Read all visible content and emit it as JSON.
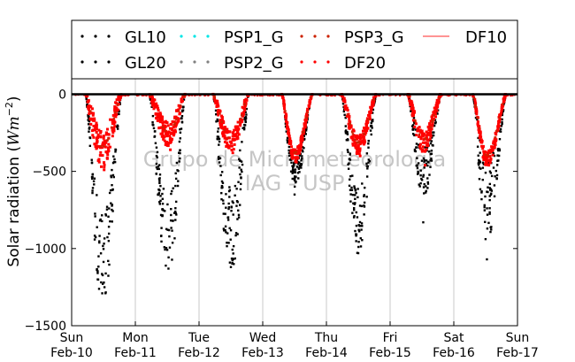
{
  "chart_data": {
    "type": "scatter",
    "ylabel": "Solar radiation (Wm^-2)",
    "ylim": [
      -1500,
      100
    ],
    "xlim": [
      0,
      7
    ],
    "yticks": [
      0,
      -500,
      -1000,
      -1500
    ],
    "ytick_labels": [
      "0",
      "−500",
      "−1000",
      "−1500"
    ],
    "xtick_labels": [
      [
        "Sun",
        "Feb-10"
      ],
      [
        "Mon",
        "Feb-11"
      ],
      [
        "Tue",
        "Feb-12"
      ],
      [
        "Wed",
        "Feb-13"
      ],
      [
        "Thu",
        "Feb-14"
      ],
      [
        "Fri",
        "Feb-15"
      ],
      [
        "Sat",
        "Feb-16"
      ],
      [
        "Sun",
        "Feb-17"
      ]
    ],
    "grid": "vertical",
    "legend_position": "top",
    "watermark": [
      "Grupo de Micrometeorologia",
      "IAG - USP"
    ],
    "series": [
      {
        "name": "GL10",
        "color": "#000000",
        "marker": "dot"
      },
      {
        "name": "PSP1_G",
        "color": "#00e5e5",
        "marker": "dot"
      },
      {
        "name": "PSP3_G",
        "color": "#cc2200",
        "marker": "dot"
      },
      {
        "name": "DF10",
        "color": "#ff7070",
        "marker": "line"
      },
      {
        "name": "GL20",
        "color": "#000000",
        "marker": "dot"
      },
      {
        "name": "PSP2_G",
        "color": "#808080",
        "marker": "dot"
      },
      {
        "name": "DF20",
        "color": "#ff0000",
        "marker": "dot"
      }
    ],
    "daily_minima": {
      "days": [
        "Feb-10",
        "Feb-11",
        "Feb-12",
        "Feb-13",
        "Feb-14",
        "Feb-15",
        "Feb-16"
      ],
      "GL": [
        -1290,
        -1130,
        -1120,
        -650,
        -1030,
        -830,
        -1070
      ],
      "DF20": [
        -490,
        -360,
        -380,
        -440,
        -400,
        -460,
        -460
      ]
    },
    "daily_profiles": [
      {
        "day": "Feb-10",
        "start": 0.22,
        "end": 0.78,
        "peak": 0.48,
        "gl": -1100,
        "df": -360,
        "gl_noise": 320,
        "df_noise": 120,
        "seed": 11
      },
      {
        "day": "Feb-11",
        "start": 0.22,
        "end": 0.78,
        "peak": 0.52,
        "gl": -950,
        "df": -260,
        "gl_noise": 300,
        "df_noise": 80,
        "seed": 23
      },
      {
        "day": "Feb-12",
        "start": 0.22,
        "end": 0.78,
        "peak": 0.5,
        "gl": -900,
        "df": -310,
        "gl_noise": 300,
        "df_noise": 70,
        "seed": 37
      },
      {
        "day": "Feb-13",
        "start": 0.3,
        "end": 0.78,
        "peak": 0.5,
        "gl": -520,
        "df": -400,
        "gl_noise": 90,
        "df_noise": 40,
        "seed": 41
      },
      {
        "day": "Feb-14",
        "start": 0.24,
        "end": 0.78,
        "peak": 0.5,
        "gl": -820,
        "df": -330,
        "gl_noise": 220,
        "df_noise": 60,
        "seed": 53
      },
      {
        "day": "Feb-15",
        "start": 0.28,
        "end": 0.8,
        "peak": 0.52,
        "gl": -500,
        "df": -310,
        "gl_noise": 180,
        "df_noise": 70,
        "seed": 67
      },
      {
        "day": "Feb-16",
        "start": 0.3,
        "end": 0.82,
        "peak": 0.52,
        "gl": -700,
        "df": -420,
        "gl_noise": 280,
        "df_noise": 50,
        "seed": 79
      }
    ]
  }
}
